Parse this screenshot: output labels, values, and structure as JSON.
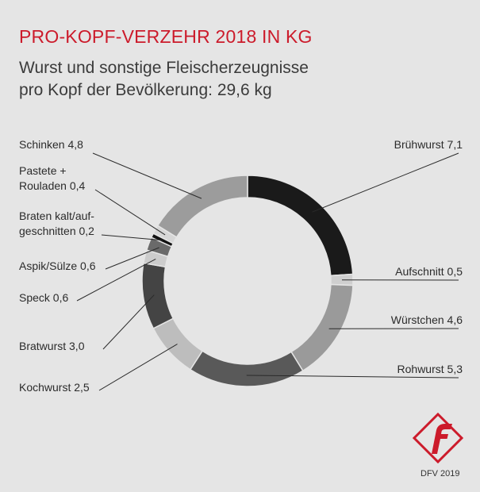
{
  "header": {
    "title": "PRO-KOPF-VERZEHR 2018 IN KG",
    "subtitle_line1": "Wurst und sonstige Fleischerzeugnisse",
    "subtitle_line2": "pro Kopf der Bevölkerung: 29,6 kg"
  },
  "chart_data": {
    "type": "pie",
    "variant": "donut",
    "title": "PRO-KOPF-VERZEHR 2018 IN KG",
    "subtitle": "Wurst und sonstige Fleischerzeugnisse pro Kopf der Bevölkerung: 29,6 kg",
    "unit": "kg",
    "total": 29.6,
    "slices": [
      {
        "name": "Brühwurst",
        "value": 7.1,
        "value_label": "7,1",
        "color": "#1a1a1a"
      },
      {
        "name": "Aufschnitt",
        "value": 0.5,
        "value_label": "0,5",
        "color": "#cfcfcf"
      },
      {
        "name": "Würstchen",
        "value": 4.6,
        "value_label": "4,6",
        "color": "#9a9a9a"
      },
      {
        "name": "Rohwurst",
        "value": 5.3,
        "value_label": "5,3",
        "color": "#595959"
      },
      {
        "name": "Kochwurst",
        "value": 2.5,
        "value_label": "2,5",
        "color": "#bdbdbd"
      },
      {
        "name": "Bratwurst",
        "value": 3.0,
        "value_label": "3,0",
        "color": "#444444"
      },
      {
        "name": "Speck",
        "value": 0.6,
        "value_label": "0,6",
        "color": "#cccccc"
      },
      {
        "name": "Aspik/Sülze",
        "value": 0.6,
        "value_label": "0,6",
        "color": "#6a6a6a"
      },
      {
        "name": "Braten kalt/aufgeschnitten",
        "value": 0.2,
        "value_label": "0,2",
        "color": "#111111"
      },
      {
        "name": "Pastete + Rouladen",
        "value": 0.4,
        "value_label": "0,4",
        "color": "#d6d6d6"
      },
      {
        "name": "Schinken",
        "value": 4.8,
        "value_label": "4,8",
        "color": "#9c9c9c"
      }
    ],
    "labels": [
      {
        "lines": [
          "Brühwurst 7,1"
        ]
      },
      {
        "lines": [
          "Aufschnitt 0,5"
        ]
      },
      {
        "lines": [
          "Würstchen 4,6"
        ]
      },
      {
        "lines": [
          "Rohwurst 5,3"
        ]
      },
      {
        "lines": [
          "Kochwurst 2,5"
        ]
      },
      {
        "lines": [
          "Bratwurst 3,0"
        ]
      },
      {
        "lines": [
          "Speck 0,6"
        ]
      },
      {
        "lines": [
          "Aspik/Sülze 0,6"
        ]
      },
      {
        "lines": [
          "Braten kalt/auf-",
          "geschnitten 0,2"
        ]
      },
      {
        "lines": [
          "Pastete +",
          "Rouladen 0,4"
        ]
      },
      {
        "lines": [
          "Schinken 4,8"
        ]
      }
    ]
  },
  "brand": {
    "logo_color": "#cc1b2b",
    "logo_letter": "f",
    "credit": "DFV 2019"
  }
}
